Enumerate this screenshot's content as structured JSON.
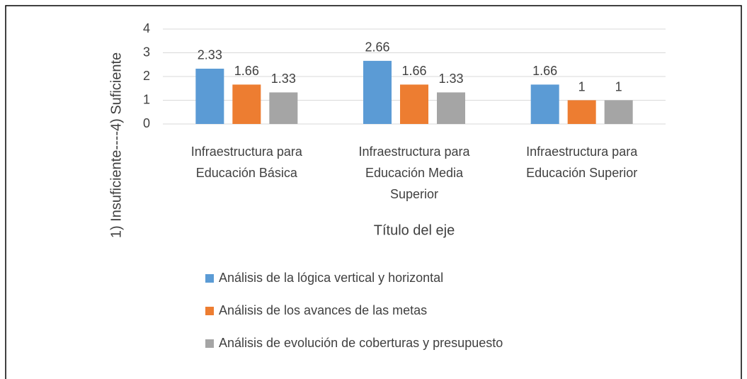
{
  "chart_data": {
    "type": "bar",
    "ylabel": "1) Insuficiente----4) Suficiente",
    "xlabel": "Título del eje",
    "categories": [
      "Infraestructura para Educación Básica",
      "Infraestructura para Educación Media Superior",
      "Infraestructura para Educación Superior"
    ],
    "series": [
      {
        "name": "Análisis de la lógica vertical y horizontal",
        "color": "#5b9bd5",
        "values": [
          2.33,
          2.66,
          1.66
        ]
      },
      {
        "name": "Análisis de los avances de las metas",
        "color": "#ed7d31",
        "values": [
          1.66,
          1.66,
          1
        ]
      },
      {
        "name": "Análisis de evolución de coberturas y presupuesto",
        "color": "#a5a5a5",
        "values": [
          1.33,
          1.33,
          1
        ]
      }
    ],
    "ylim": [
      0,
      4
    ],
    "yticks": [
      0,
      1,
      2,
      3,
      4
    ],
    "grid": true,
    "legend": "bottom"
  }
}
